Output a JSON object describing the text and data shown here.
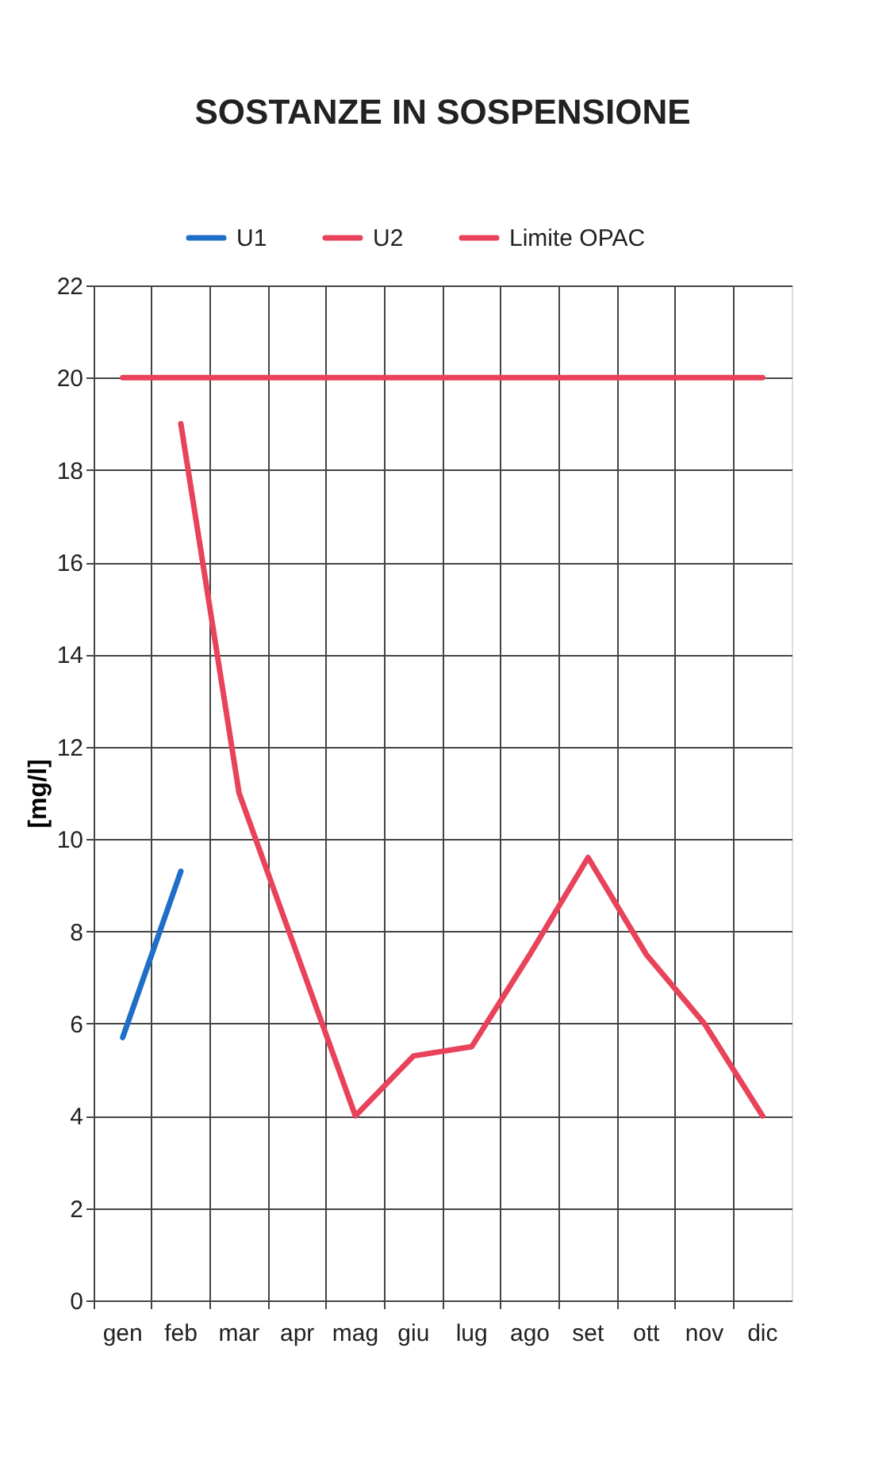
{
  "chart_data": {
    "type": "line",
    "title": "SOSTANZE IN SOSPENSIONE",
    "ylabel": "[mg/l]",
    "categories": [
      "gen",
      "feb",
      "mar",
      "apr",
      "mag",
      "giu",
      "lug",
      "ago",
      "set",
      "ott",
      "nov",
      "dic"
    ],
    "series": [
      {
        "name": "U1",
        "color": "#1f6fc8",
        "values": [
          5.7,
          9.3,
          null,
          null,
          null,
          null,
          null,
          null,
          null,
          null,
          null,
          null
        ]
      },
      {
        "name": "U2",
        "color": "#e8435a",
        "values": [
          null,
          19,
          11,
          7.5,
          4,
          5.3,
          5.5,
          7.5,
          9.6,
          7.5,
          6,
          4
        ]
      },
      {
        "name": "Limite OPAC",
        "color": "#e8435a",
        "values": [
          20,
          20,
          20,
          20,
          20,
          20,
          20,
          20,
          20,
          20,
          20,
          20
        ]
      }
    ],
    "ylim": [
      0,
      22
    ],
    "yticks": [
      0,
      2,
      4,
      6,
      8,
      10,
      12,
      14,
      16,
      18,
      20,
      22
    ],
    "grid": true,
    "legend": "top",
    "marker": "none",
    "line_style": "solid"
  }
}
